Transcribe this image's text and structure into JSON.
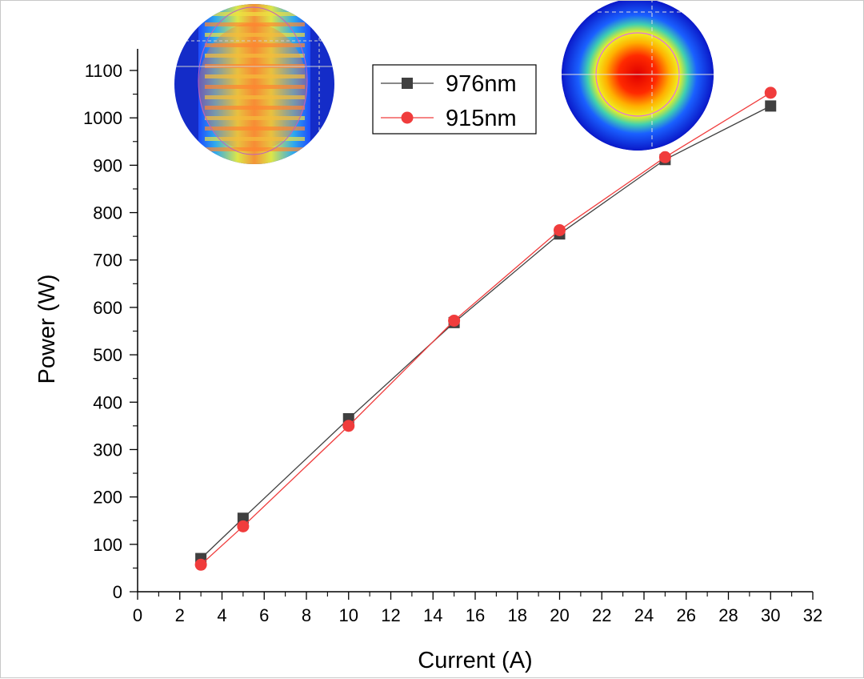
{
  "chart_data": {
    "type": "line",
    "xlabel": "Current (A)",
    "ylabel": "Power (W)",
    "xlim": [
      0,
      32
    ],
    "ylim": [
      0,
      1100
    ],
    "x_ticks": [
      "0",
      "2",
      "4",
      "6",
      "8",
      "10",
      "12",
      "14",
      "16",
      "18",
      "20",
      "22",
      "24",
      "26",
      "28",
      "30",
      "32"
    ],
    "y_ticks": [
      "0",
      "100",
      "200",
      "300",
      "400",
      "500",
      "600",
      "700",
      "800",
      "900",
      "1000",
      "1100"
    ],
    "grid": false,
    "legend_position": "top-center",
    "series": [
      {
        "name": "976nm",
        "color": "#404040",
        "marker": "square",
        "x": [
          3,
          5,
          10,
          15,
          20,
          25,
          30
        ],
        "y": [
          70,
          155,
          365,
          568,
          755,
          912,
          1025
        ]
      },
      {
        "name": "915nm",
        "color": "#f03c3c",
        "marker": "circle",
        "x": [
          3,
          5,
          10,
          15,
          20,
          25,
          30
        ],
        "y": [
          57,
          138,
          350,
          572,
          763,
          917,
          1053
        ]
      }
    ],
    "insets": [
      "beam-profile-image-976nm",
      "beam-profile-image-915nm"
    ]
  }
}
